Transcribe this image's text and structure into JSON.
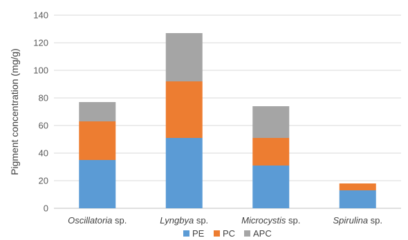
{
  "chart_data": {
    "type": "bar",
    "stacked": true,
    "ylabel": "Pigment concentration (mg/g)",
    "xlabel": "",
    "ylim": [
      0,
      140
    ],
    "yticks": [
      0,
      20,
      40,
      60,
      80,
      100,
      120,
      140
    ],
    "grid": true,
    "legend": "bottom",
    "categories": [
      {
        "genus": "Oscillatoria",
        "suffix": " sp."
      },
      {
        "genus": "Lyngbya",
        "suffix": " sp."
      },
      {
        "genus": "Microcystis",
        "suffix": " sp."
      },
      {
        "genus": "Spirulina",
        "suffix": " sp."
      }
    ],
    "series": [
      {
        "name": "PE",
        "color": "#5b9bd5",
        "values": [
          35,
          51,
          31,
          13
        ]
      },
      {
        "name": "PC",
        "color": "#ed7d31",
        "values": [
          28,
          41,
          20,
          5
        ]
      },
      {
        "name": "APC",
        "color": "#a5a5a5",
        "values": [
          14,
          35,
          23,
          0
        ]
      }
    ]
  }
}
